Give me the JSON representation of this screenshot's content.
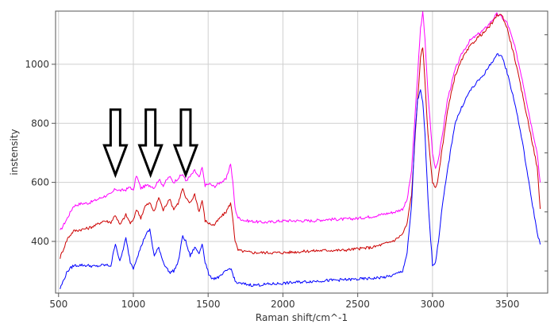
{
  "chart_data": {
    "type": "line",
    "title": "",
    "xlabel": "Raman shift/cm^-1",
    "ylabel": "instensity",
    "xlim": [
      480,
      3770
    ],
    "ylim": [
      225,
      1180
    ],
    "grid": true,
    "legend": "none",
    "x_ticks": [
      {
        "value": 500,
        "label": "500"
      },
      {
        "value": 1000,
        "label": "1000"
      },
      {
        "value": 1500,
        "label": "1500"
      },
      {
        "value": 2000,
        "label": "2000"
      },
      {
        "value": 2500,
        "label": "2500"
      },
      {
        "value": 3000,
        "label": "3000"
      },
      {
        "value": 3500,
        "label": "3500"
      }
    ],
    "y_ticks": [
      {
        "value": 400,
        "label": "400"
      },
      {
        "value": 600,
        "label": "600"
      },
      {
        "value": 800,
        "label": "800"
      },
      {
        "value": 1000,
        "label": "1000"
      }
    ],
    "series": [
      {
        "color": "#ff00ff",
        "x": [
          510,
          560,
          600,
          650,
          700,
          750,
          800,
          850,
          880,
          910,
          950,
          980,
          1000,
          1020,
          1050,
          1080,
          1110,
          1140,
          1170,
          1200,
          1240,
          1270,
          1300,
          1330,
          1350,
          1380,
          1410,
          1440,
          1460,
          1480,
          1510,
          1540,
          1580,
          1620,
          1650,
          1665,
          1680,
          1700,
          1750,
          1800,
          1850,
          1900,
          2000,
          2100,
          2200,
          2300,
          2400,
          2500,
          2600,
          2700,
          2750,
          2800,
          2830,
          2860,
          2880,
          2900,
          2920,
          2935,
          2950,
          2970,
          3000,
          3020,
          3040,
          3060,
          3100,
          3150,
          3200,
          3250,
          3300,
          3350,
          3400,
          3430,
          3450,
          3470,
          3500,
          3550,
          3600,
          3650,
          3700,
          3720
        ],
        "y": [
          435,
          480,
          520,
          528,
          530,
          540,
          552,
          560,
          578,
          572,
          575,
          585,
          570,
          625,
          580,
          588,
          590,
          582,
          610,
          590,
          620,
          600,
          615,
          628,
          605,
          620,
          640,
          615,
          650,
          590,
          595,
          585,
          600,
          610,
          665,
          600,
          512,
          480,
          470,
          468,
          465,
          465,
          470,
          470,
          470,
          475,
          475,
          478,
          485,
          495,
          500,
          510,
          540,
          640,
          800,
          960,
          1120,
          1180,
          1080,
          900,
          700,
          648,
          680,
          740,
          880,
          980,
          1040,
          1080,
          1100,
          1120,
          1150,
          1170,
          1165,
          1155,
          1140,
          1060,
          950,
          820,
          700,
          600
        ]
      },
      {
        "color": "#cc0000",
        "x": [
          510,
          560,
          600,
          650,
          700,
          750,
          800,
          850,
          880,
          910,
          950,
          980,
          1000,
          1020,
          1050,
          1080,
          1110,
          1140,
          1170,
          1200,
          1240,
          1270,
          1300,
          1330,
          1350,
          1380,
          1410,
          1440,
          1460,
          1480,
          1510,
          1540,
          1580,
          1620,
          1650,
          1665,
          1680,
          1700,
          1750,
          1800,
          1850,
          1900,
          2000,
          2100,
          2200,
          2300,
          2400,
          2500,
          2600,
          2700,
          2750,
          2800,
          2830,
          2860,
          2880,
          2900,
          2920,
          2935,
          2950,
          2970,
          3000,
          3020,
          3040,
          3060,
          3100,
          3150,
          3200,
          3250,
          3300,
          3350,
          3400,
          3430,
          3450,
          3470,
          3500,
          3550,
          3600,
          3650,
          3700,
          3720
        ],
        "y": [
          345,
          410,
          435,
          440,
          445,
          455,
          470,
          465,
          490,
          455,
          490,
          462,
          470,
          510,
          480,
          520,
          530,
          500,
          550,
          505,
          545,
          510,
          530,
          580,
          545,
          530,
          560,
          500,
          540,
          470,
          460,
          455,
          480,
          500,
          530,
          480,
          400,
          370,
          365,
          362,
          362,
          362,
          362,
          365,
          368,
          370,
          370,
          375,
          380,
          395,
          405,
          425,
          460,
          560,
          720,
          880,
          1020,
          1060,
          940,
          760,
          600,
          578,
          620,
          700,
          840,
          960,
          1020,
          1060,
          1090,
          1110,
          1140,
          1165,
          1170,
          1160,
          1120,
          1020,
          900,
          780,
          650,
          510
        ]
      },
      {
        "color": "#0000ff",
        "x": [
          510,
          560,
          600,
          650,
          700,
          750,
          800,
          850,
          880,
          910,
          950,
          980,
          1000,
          1020,
          1050,
          1080,
          1110,
          1140,
          1170,
          1200,
          1240,
          1270,
          1300,
          1330,
          1350,
          1380,
          1410,
          1440,
          1460,
          1480,
          1510,
          1540,
          1580,
          1620,
          1650,
          1665,
          1680,
          1700,
          1750,
          1800,
          1850,
          1900,
          2000,
          2100,
          2200,
          2300,
          2400,
          2500,
          2600,
          2700,
          2750,
          2800,
          2830,
          2860,
          2880,
          2900,
          2920,
          2935,
          2950,
          2970,
          3000,
          3020,
          3040,
          3060,
          3100,
          3150,
          3200,
          3250,
          3300,
          3350,
          3400,
          3430,
          3450,
          3470,
          3500,
          3550,
          3600,
          3650,
          3700,
          3720
        ],
        "y": [
          240,
          300,
          318,
          320,
          318,
          315,
          320,
          318,
          395,
          330,
          410,
          330,
          310,
          340,
          380,
          420,
          440,
          350,
          380,
          330,
          295,
          300,
          330,
          420,
          400,
          350,
          380,
          360,
          395,
          330,
          280,
          275,
          280,
          300,
          310,
          290,
          265,
          258,
          255,
          252,
          253,
          255,
          258,
          262,
          265,
          268,
          270,
          272,
          275,
          280,
          288,
          300,
          360,
          520,
          740,
          880,
          910,
          870,
          760,
          540,
          320,
          330,
          400,
          500,
          640,
          800,
          860,
          910,
          940,
          970,
          1010,
          1030,
          1035,
          1020,
          970,
          870,
          740,
          580,
          430,
          390
        ]
      }
    ],
    "annotations": [
      {
        "type": "down-arrow",
        "x": 880
      },
      {
        "type": "down-arrow",
        "x": 1115
      },
      {
        "type": "down-arrow",
        "x": 1350
      }
    ]
  }
}
